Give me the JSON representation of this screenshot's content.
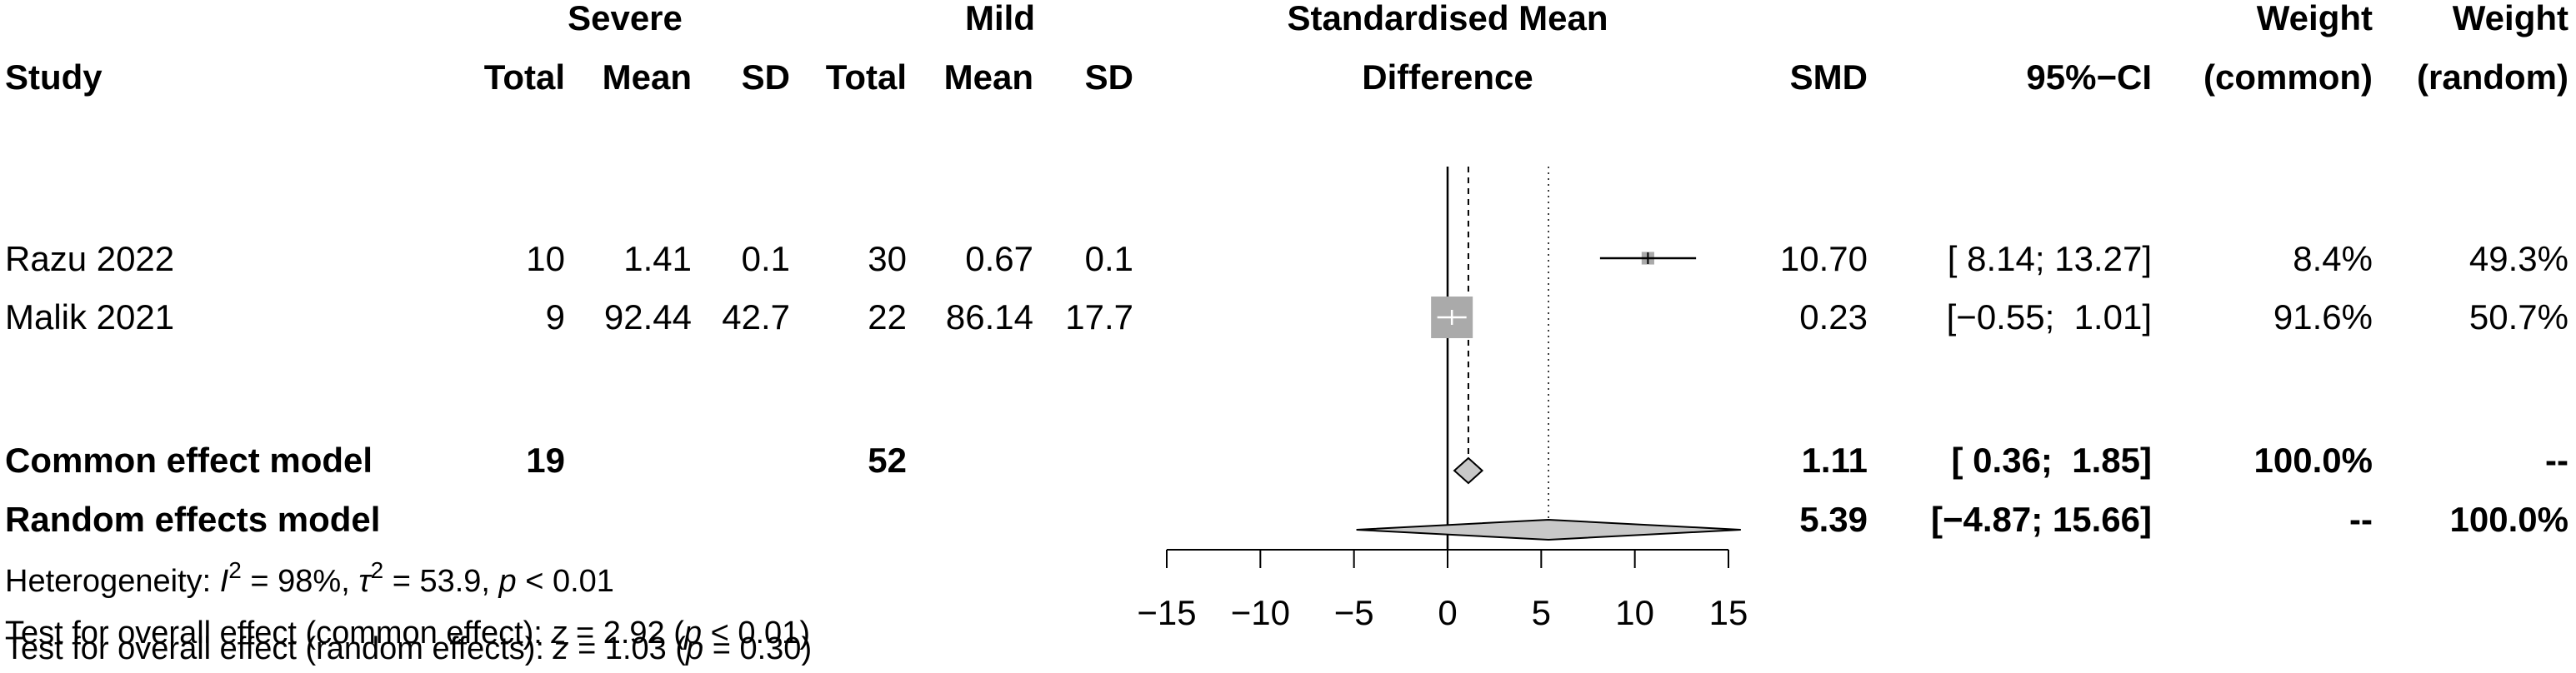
{
  "chart_data": {
    "type": "forest",
    "headers": {
      "study": "Study",
      "group1": "Severe",
      "group2": "Mild",
      "total": "Total",
      "mean": "Mean",
      "sd": "SD",
      "plot_title_line1": "Standardised Mean",
      "plot_title_line2": "Difference",
      "smd": "SMD",
      "ci": "95%−CI",
      "weight_line1": "Weight",
      "weight_common_line2": "(common)",
      "weight_random_line2": "(random)"
    },
    "studies": [
      {
        "name": "Razu 2022",
        "total1": "10",
        "mean1": "1.41",
        "sd1": "0.1",
        "total2": "30",
        "mean2": "0.67",
        "sd2": "0.1",
        "smd_text": "10.70",
        "ci_text": "[ 8.14; 13.27]",
        "w_common": "8.4%",
        "w_random": "49.3%",
        "smd": 10.7,
        "lower": 8.14,
        "upper": 13.27,
        "weight": 8.4
      },
      {
        "name": "Malik 2021",
        "total1": "9",
        "mean1": "92.44",
        "sd1": "42.7",
        "total2": "22",
        "mean2": "86.14",
        "sd2": "17.7",
        "smd_text": "0.23",
        "ci_text": "[−0.55;  1.01]",
        "w_common": "91.6%",
        "w_random": "50.7%",
        "smd": 0.23,
        "lower": -0.55,
        "upper": 1.01,
        "weight": 91.6
      }
    ],
    "common": {
      "label": "Common effect model",
      "total1": "19",
      "total2": "52",
      "smd_text": "1.11",
      "ci_text": "[ 0.36;  1.85]",
      "w_common": "100.0%",
      "w_random": "--",
      "smd": 1.11,
      "lower": 0.36,
      "upper": 1.85
    },
    "random": {
      "label": "Random effects model",
      "smd_text": "5.39",
      "ci_text": "[−4.87; 15.66]",
      "w_common": "--",
      "w_random": "100.0%",
      "smd": 5.39,
      "lower": -4.87,
      "upper": 15.66
    },
    "heterogeneity": {
      "prefix": "Heterogeneity: ",
      "i2_symbol": "I",
      "i2_sup": "2",
      "i2_value": " = 98%, ",
      "tau2_symbol": "τ",
      "tau2_sup": "2",
      "tau2_value": " = 53.9, ",
      "p_symbol": "p",
      "p_value": " < 0.01"
    },
    "overall_common": {
      "prefix": "Test for overall effect (common effect): ",
      "z_symbol": "z",
      "z_value": " = 2.92 (",
      "p_symbol": "p",
      "p_value": " < 0.01)"
    },
    "overall_random": {
      "prefix": "Test for overall effect (random effects): ",
      "z_symbol": "z",
      "z_value": " = 1.03 (",
      "p_symbol": "p",
      "p_value": " = 0.30)"
    },
    "axis": {
      "xlim": [
        -15,
        15
      ],
      "ticks": [
        -15,
        -10,
        -5,
        0,
        5,
        10,
        15
      ],
      "tick_labels": [
        "−15",
        "−10",
        "−5",
        "0",
        "5",
        "10",
        "15"
      ],
      "null_line": 0
    },
    "colors": {
      "study_square": "#aaaaaa",
      "diamond": "#c8c8c8",
      "line": "#000000"
    }
  }
}
